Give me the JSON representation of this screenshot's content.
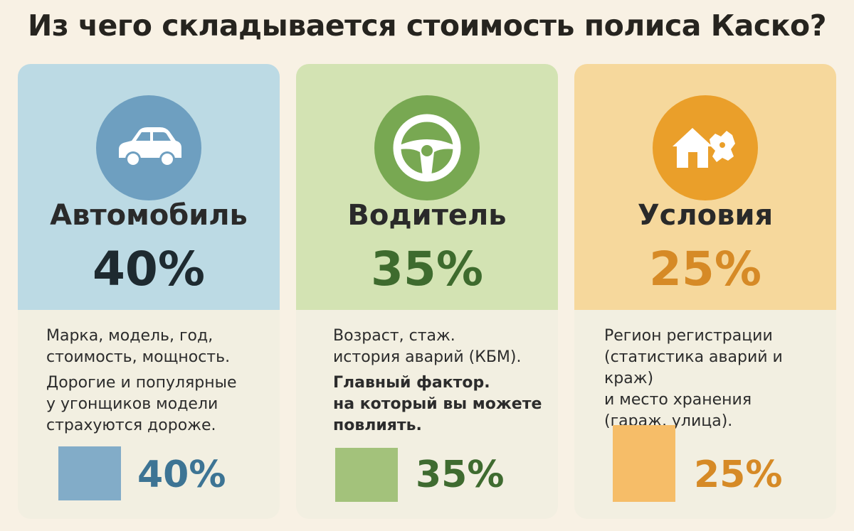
{
  "title": "Из чего складывается стоимость полиса Каско?",
  "cards": [
    {
      "icon": "car-icon",
      "category": "Автомобиль",
      "percent_label": "40%",
      "share": 40,
      "lines": [
        "Марка, модель, год,",
        "стоимость, мощность."
      ],
      "lines2": [
        "Дорогие и популярные",
        "у угонщиков модели",
        "страхуются дороже."
      ],
      "colors": {
        "top": "#bcdae4",
        "accent": "#6e9fc0"
      }
    },
    {
      "icon": "steering-wheel-icon",
      "category": "Водитель",
      "percent_label": "35%",
      "share": 35,
      "lines": [
        "Возраст, стаж.",
        "история аварий (КБМ)."
      ],
      "lines2": [
        "Главный фактор.",
        "на который вы можете",
        "повлиять."
      ],
      "colors": {
        "top": "#d3e3b3",
        "accent": "#78a852"
      }
    },
    {
      "icon": "house-map-icon",
      "category": "Условия",
      "percent_label": "25%",
      "share": 25,
      "lines": [
        "Регион регистрации",
        "(статистика аварий и краж)",
        "и место хранения",
        "(гараж, улица)."
      ],
      "colors": {
        "top": "#f6d89c",
        "accent": "#ea9f2a"
      }
    }
  ]
}
